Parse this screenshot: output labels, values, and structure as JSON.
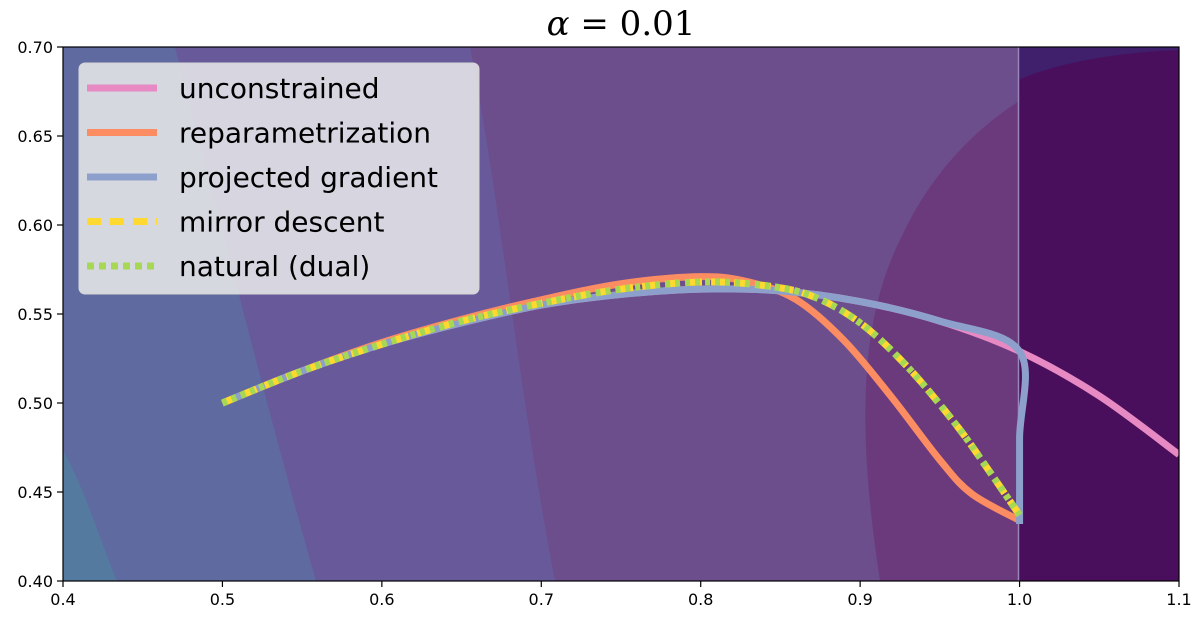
{
  "chart_data": {
    "type": "line",
    "title_symbol": "α",
    "title_rest": " = 0.01",
    "xlim": [
      0.4,
      1.1
    ],
    "ylim": [
      0.4,
      0.7
    ],
    "x_ticks": [
      "0.4",
      "0.5",
      "0.6",
      "0.7",
      "0.8",
      "0.9",
      "1.0",
      "1.1"
    ],
    "x_tick_values": [
      0.4,
      0.5,
      0.6,
      0.7,
      0.8,
      0.9,
      1.0,
      1.1
    ],
    "y_ticks": [
      "0.40",
      "0.45",
      "0.50",
      "0.55",
      "0.60",
      "0.65",
      "0.70"
    ],
    "y_tick_values": [
      0.4,
      0.45,
      0.5,
      0.55,
      0.6,
      0.65,
      0.7
    ],
    "grid": false,
    "legend_position": "top-left",
    "background": "filled contour (viridis-like), constraint boundary at x = 1.0 with shaded infeasible region x > 1.0",
    "constraint_x": 1.0,
    "series": [
      {
        "name": "unconstrained",
        "color": "#e78ac3",
        "style": "solid",
        "x": [
          0.5,
          0.55,
          0.6,
          0.65,
          0.7,
          0.75,
          0.8,
          0.85,
          0.9,
          0.95,
          1.0,
          1.05,
          1.1
        ],
        "y": [
          0.5,
          0.518,
          0.533,
          0.545,
          0.555,
          0.561,
          0.564,
          0.563,
          0.557,
          0.546,
          0.529,
          0.504,
          0.471
        ]
      },
      {
        "name": "reparametrization",
        "color": "#fc8d62",
        "style": "solid",
        "x": [
          0.5,
          0.55,
          0.6,
          0.65,
          0.7,
          0.75,
          0.8,
          0.83,
          0.86,
          0.89,
          0.92,
          0.95,
          0.97,
          1.0
        ],
        "y": [
          0.5,
          0.518,
          0.534,
          0.547,
          0.558,
          0.567,
          0.571,
          0.568,
          0.558,
          0.535,
          0.503,
          0.468,
          0.449,
          0.434
        ]
      },
      {
        "name": "projected gradient",
        "color": "#8da0cb",
        "style": "solid",
        "x": [
          0.5,
          0.55,
          0.6,
          0.65,
          0.7,
          0.75,
          0.8,
          0.85,
          0.9,
          0.95,
          1.0,
          1.0,
          1.0
        ],
        "y": [
          0.5,
          0.518,
          0.533,
          0.545,
          0.555,
          0.561,
          0.564,
          0.563,
          0.557,
          0.546,
          0.529,
          0.48,
          0.432
        ]
      },
      {
        "name": "mirror descent",
        "color": "#ffd92f",
        "style": "dashed",
        "x": [
          0.5,
          0.55,
          0.6,
          0.65,
          0.7,
          0.75,
          0.8,
          0.84,
          0.87,
          0.9,
          0.93,
          0.96,
          0.98,
          1.0
        ],
        "y": [
          0.5,
          0.518,
          0.533,
          0.546,
          0.556,
          0.564,
          0.568,
          0.566,
          0.56,
          0.545,
          0.52,
          0.488,
          0.463,
          0.437
        ]
      },
      {
        "name": "natural (dual)",
        "color": "#a6d854",
        "style": "dotted",
        "x": [
          0.5,
          0.55,
          0.6,
          0.65,
          0.7,
          0.75,
          0.8,
          0.84,
          0.87,
          0.9,
          0.93,
          0.96,
          0.98,
          1.0
        ],
        "y": [
          0.5,
          0.518,
          0.533,
          0.546,
          0.556,
          0.564,
          0.568,
          0.566,
          0.56,
          0.545,
          0.52,
          0.488,
          0.463,
          0.437
        ]
      }
    ]
  }
}
